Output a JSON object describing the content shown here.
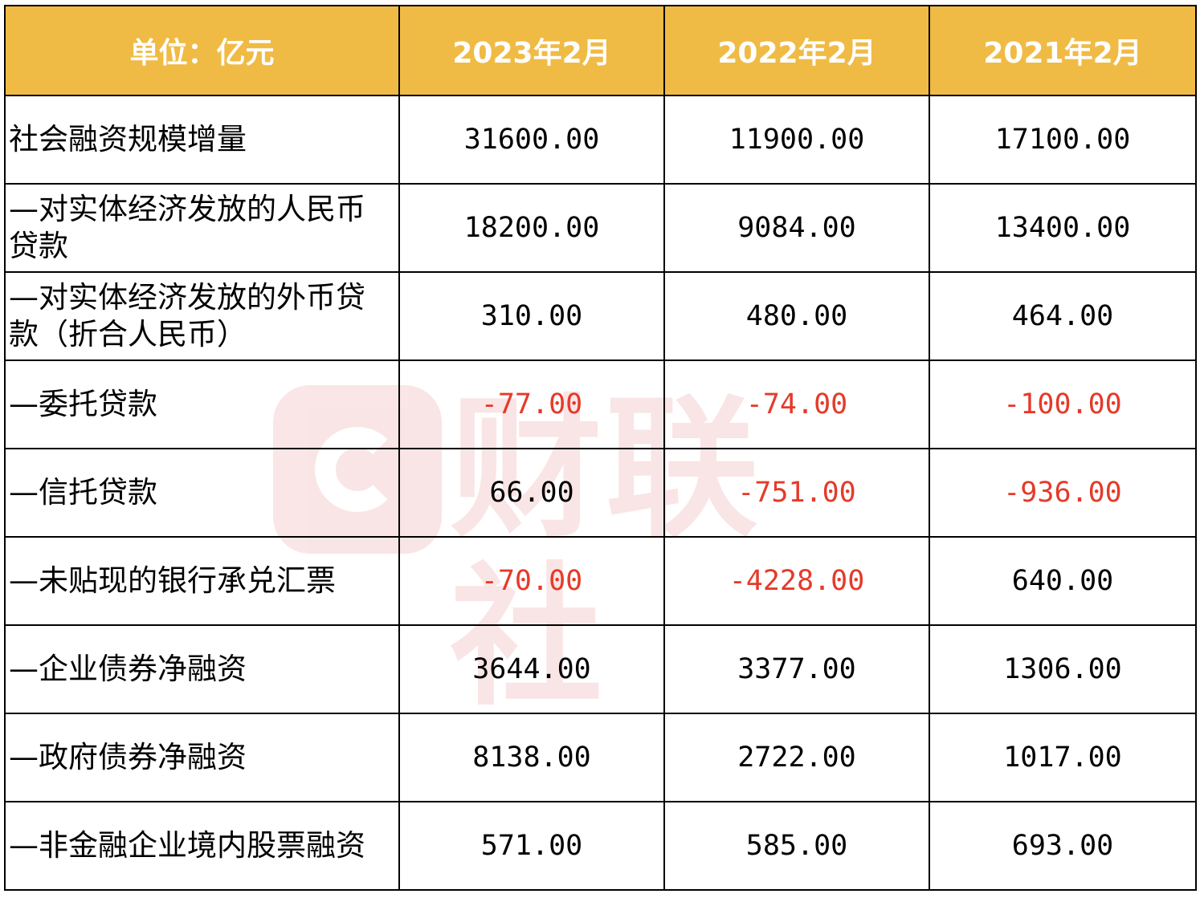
{
  "header": {
    "unit": "单位：亿元",
    "periods": [
      "2023年2月",
      "2022年2月",
      "2021年2月"
    ]
  },
  "rows": [
    {
      "label": "社会融资规模增量",
      "values": [
        "31600.00",
        "11900.00",
        "17100.00"
      ]
    },
    {
      "label": "—对实体经济发放的人民币贷款",
      "values": [
        "18200.00",
        "9084.00",
        "13400.00"
      ]
    },
    {
      "label": "—对实体经济发放的外币贷款（折合人民币）",
      "values": [
        "310.00",
        "480.00",
        "464.00"
      ]
    },
    {
      "label": "—委托贷款",
      "values": [
        "-77.00",
        "-74.00",
        "-100.00"
      ]
    },
    {
      "label": "—信托贷款",
      "values": [
        "66.00",
        "-751.00",
        "-936.00"
      ]
    },
    {
      "label": "—未贴现的银行承兑汇票",
      "values": [
        "-70.00",
        "-4228.00",
        "640.00"
      ]
    },
    {
      "label": "—企业债券净融资",
      "values": [
        "3644.00",
        "3377.00",
        "1306.00"
      ]
    },
    {
      "label": "—政府债券净融资",
      "values": [
        "8138.00",
        "2722.00",
        "1017.00"
      ]
    },
    {
      "label": "—非金融企业境内股票融资",
      "values": [
        "571.00",
        "585.00",
        "693.00"
      ]
    }
  ],
  "watermark": {
    "text": "财联社"
  },
  "colors": {
    "header_bg": "#f0bb45",
    "header_text": "#ffffff",
    "negative": "#e53a2a",
    "border": "#000000"
  }
}
